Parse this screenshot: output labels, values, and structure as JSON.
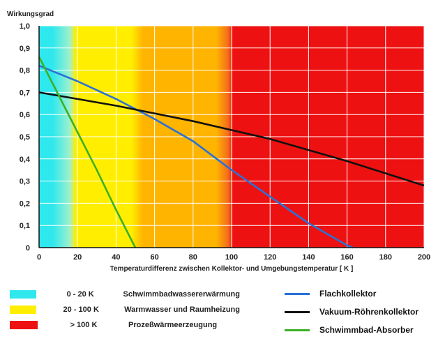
{
  "chart_data": {
    "type": "line",
    "title": "",
    "ylabel": "Wirkungsgrad",
    "xlabel": "Temperaturdifferenz  zwischen Kollektor- und Umgebungstemperatur [ K ]",
    "xlim": [
      0,
      200
    ],
    "ylim": [
      0,
      1.0
    ],
    "x_ticks": [
      "0",
      "20",
      "40",
      "60",
      "80",
      "100",
      "120",
      "140",
      "160",
      "180",
      "200"
    ],
    "y_ticks": [
      "0",
      "0,1",
      "0,2",
      "0,3",
      "0,4",
      "0,5",
      "0,6",
      "0,7",
      "0,8",
      "0,9",
      "1,0"
    ],
    "grid": true,
    "zones": [
      {
        "range": "0 - 20 K",
        "from": 0,
        "to": 20,
        "label": "Schwimmbadwassererwärmung",
        "color": "#2ee8ee"
      },
      {
        "range": "20 - 100 K",
        "from": 20,
        "to": 100,
        "label": "Warmwasser und Raumheizung",
        "color": "#ffee00"
      },
      {
        "range": "> 100 K",
        "from": 100,
        "to": 200,
        "label": "Prozeßwärmeerzeugung",
        "color": "#ee1111"
      }
    ],
    "series": [
      {
        "name": "Flachkollektor",
        "color": "#2a72d6",
        "x": [
          0,
          20,
          40,
          60,
          80,
          100,
          120,
          140,
          160,
          163
        ],
        "y": [
          0.82,
          0.75,
          0.67,
          0.58,
          0.48,
          0.35,
          0.23,
          0.11,
          0.01,
          0.0
        ]
      },
      {
        "name": "Vakuum-Röhrenkollektor",
        "color": "#111111",
        "x": [
          0,
          40,
          80,
          100,
          120,
          160,
          200
        ],
        "y": [
          0.7,
          0.64,
          0.57,
          0.53,
          0.49,
          0.39,
          0.28
        ]
      },
      {
        "name": "Schwimmbad-Absorber",
        "color": "#3cb023",
        "x": [
          0,
          10,
          20,
          30,
          40,
          50
        ],
        "y": [
          0.86,
          0.69,
          0.52,
          0.35,
          0.17,
          0.0
        ]
      }
    ]
  },
  "colors": {
    "cyan": "#2ee8ee",
    "yellow": "#ffee00",
    "orange": "#ffb400",
    "red": "#ee1111",
    "grid": "#ffffff"
  }
}
